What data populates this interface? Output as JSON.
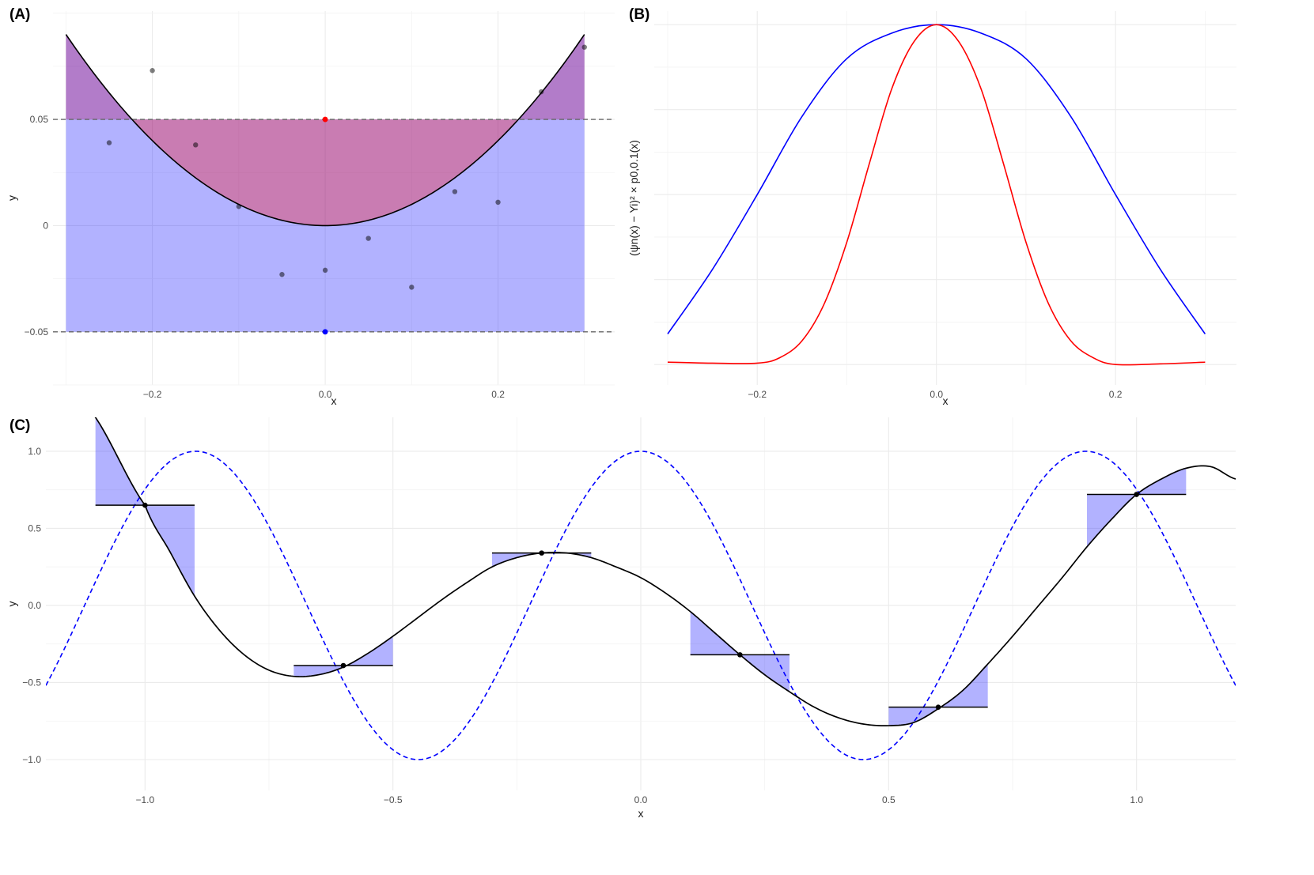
{
  "chart_data": [
    {
      "panel": "(A)",
      "type": "scatter",
      "xlabel": "x",
      "ylabel": "y",
      "xlim": [
        -0.315,
        0.335
      ],
      "ylim": [
        -0.075,
        0.101
      ],
      "x_ticks": [
        -0.2,
        0.0,
        0.2
      ],
      "x_tick_labels": [
        "−0.2",
        "0.0",
        "0.2"
      ],
      "y_ticks": [
        -0.05,
        0.0,
        0.05
      ],
      "y_tick_labels": [
        "−0.05",
        "0",
        "0.05"
      ],
      "grid": true,
      "curve": {
        "name": "",
        "formula": "x^2",
        "x_range": [
          -0.3,
          0.3
        ],
        "color": "#000000"
      },
      "reference_lines": [
        {
          "y": 0.05,
          "style": "dashed",
          "color": "#666666"
        },
        {
          "y": -0.05,
          "style": "dashed",
          "color": "#666666"
        }
      ],
      "bands": [
        {
          "from": -0.05,
          "to": 0.05,
          "color": "#0000ff",
          "opacity": 0.3
        },
        {
          "from_curve": true,
          "to": 0.05,
          "color": "#ff0000",
          "opacity": 0.3
        }
      ],
      "highlight_points": [
        {
          "x": 0.0,
          "y": 0.05,
          "color": "#ff0000"
        },
        {
          "x": 0.0,
          "y": -0.05,
          "color": "#0000ff"
        }
      ],
      "points": [
        {
          "x": -0.25,
          "y": 0.039
        },
        {
          "x": -0.2,
          "y": 0.073
        },
        {
          "x": -0.15,
          "y": 0.038
        },
        {
          "x": -0.1,
          "y": 0.009
        },
        {
          "x": -0.05,
          "y": -0.023
        },
        {
          "x": 0.0,
          "y": -0.021
        },
        {
          "x": 0.05,
          "y": -0.006
        },
        {
          "x": 0.1,
          "y": -0.029
        },
        {
          "x": 0.15,
          "y": 0.016
        },
        {
          "x": 0.2,
          "y": 0.011
        },
        {
          "x": 0.25,
          "y": 0.063
        },
        {
          "x": 0.3,
          "y": 0.084
        }
      ]
    },
    {
      "panel": "(B)",
      "type": "line",
      "xlabel": "x",
      "ylabel": "(ψn(x) − Yi)² × p0,0.1(x)",
      "xlim": [
        -0.315,
        0.335
      ],
      "ylim": [
        -0.06,
        1.04
      ],
      "x_ticks": [
        -0.2,
        0.0,
        0.2
      ],
      "x_tick_labels": [
        "−0.2",
        "0.0",
        "0.2"
      ],
      "y_ticks_unlabeled": true,
      "grid": true,
      "series": [
        {
          "name": "",
          "color": "#0000ff",
          "x": [
            -0.3,
            -0.25,
            -0.2,
            -0.15,
            -0.1,
            -0.05,
            0.0,
            0.05,
            0.1,
            0.15,
            0.2,
            0.25,
            0.3
          ],
          "y": [
            0.09,
            0.28,
            0.5,
            0.73,
            0.9,
            0.975,
            1.0,
            0.975,
            0.9,
            0.73,
            0.5,
            0.28,
            0.09
          ]
        },
        {
          "name": "",
          "color": "#ff0000",
          "x": [
            -0.3,
            -0.25,
            -0.2,
            -0.175,
            -0.15,
            -0.125,
            -0.1,
            -0.075,
            -0.05,
            -0.025,
            0.0,
            0.025,
            0.05,
            0.075,
            0.1,
            0.125,
            0.15,
            0.175,
            0.2,
            0.25,
            0.3
          ],
          "y": [
            0.007,
            0.004,
            0.004,
            0.02,
            0.07,
            0.18,
            0.36,
            0.59,
            0.81,
            0.95,
            1.0,
            0.95,
            0.81,
            0.59,
            0.36,
            0.18,
            0.07,
            0.02,
            0.0,
            0.002,
            0.007
          ]
        }
      ]
    },
    {
      "panel": "(C)",
      "type": "line",
      "xlabel": "x",
      "ylabel": "y",
      "xlim": [
        -1.2,
        1.2
      ],
      "ylim": [
        -1.2,
        1.22
      ],
      "x_ticks": [
        -1.0,
        -0.5,
        0.0,
        0.5,
        1.0
      ],
      "x_tick_labels": [
        "−1.0",
        "−0.5",
        "0.0",
        "0.5",
        "1.0"
      ],
      "y_ticks": [
        -1.0,
        -0.5,
        0.0,
        0.5,
        1.0
      ],
      "y_tick_labels": [
        "−1.0",
        "−0.5",
        "0.0",
        "0.5",
        "1.0"
      ],
      "grid": true,
      "series": [
        {
          "name": "",
          "color": "#000000",
          "style": "solid",
          "x": [
            -1.2,
            -1.1,
            -1.0,
            -0.95,
            -0.9,
            -0.85,
            -0.8,
            -0.75,
            -0.7,
            -0.65,
            -0.6,
            -0.55,
            -0.5,
            -0.45,
            -0.4,
            -0.35,
            -0.3,
            -0.25,
            -0.2,
            -0.15,
            -0.1,
            -0.05,
            0.0,
            0.05,
            0.1,
            0.15,
            0.2,
            0.25,
            0.3,
            0.35,
            0.4,
            0.45,
            0.5,
            0.55,
            0.6,
            0.65,
            0.7,
            0.75,
            0.8,
            0.85,
            0.9,
            0.95,
            1.0,
            1.05,
            1.1,
            1.15,
            1.2
          ],
          "y": [
            1.6,
            1.22,
            0.65,
            0.35,
            0.06,
            -0.16,
            -0.32,
            -0.42,
            -0.46,
            -0.45,
            -0.4,
            -0.31,
            -0.2,
            -0.08,
            0.04,
            0.15,
            0.25,
            0.31,
            0.34,
            0.34,
            0.31,
            0.25,
            0.18,
            0.08,
            -0.04,
            -0.18,
            -0.32,
            -0.45,
            -0.56,
            -0.66,
            -0.73,
            -0.77,
            -0.78,
            -0.76,
            -0.67,
            -0.55,
            -0.38,
            -0.2,
            -0.01,
            0.18,
            0.38,
            0.56,
            0.72,
            0.82,
            0.89,
            0.9,
            0.82
          ]
        },
        {
          "name": "",
          "color": "#0000ff",
          "style": "dashed",
          "formula": "cos(7x)",
          "x_range": [
            -1.2,
            1.2
          ]
        }
      ],
      "step_points": [
        {
          "x": -1.0,
          "y": 0.65,
          "x_from": -1.1,
          "x_to": -0.9
        },
        {
          "x": -0.6,
          "y": -0.39,
          "x_from": -0.7,
          "x_to": -0.5
        },
        {
          "x": -0.2,
          "y": 0.34,
          "x_from": -0.3,
          "x_to": -0.1
        },
        {
          "x": 0.2,
          "y": -0.32,
          "x_from": 0.1,
          "x_to": 0.3
        },
        {
          "x": 0.6,
          "y": -0.66,
          "x_from": 0.5,
          "x_to": 0.7
        },
        {
          "x": 1.0,
          "y": 0.72,
          "x_from": 0.9,
          "x_to": 1.1
        }
      ]
    }
  ]
}
